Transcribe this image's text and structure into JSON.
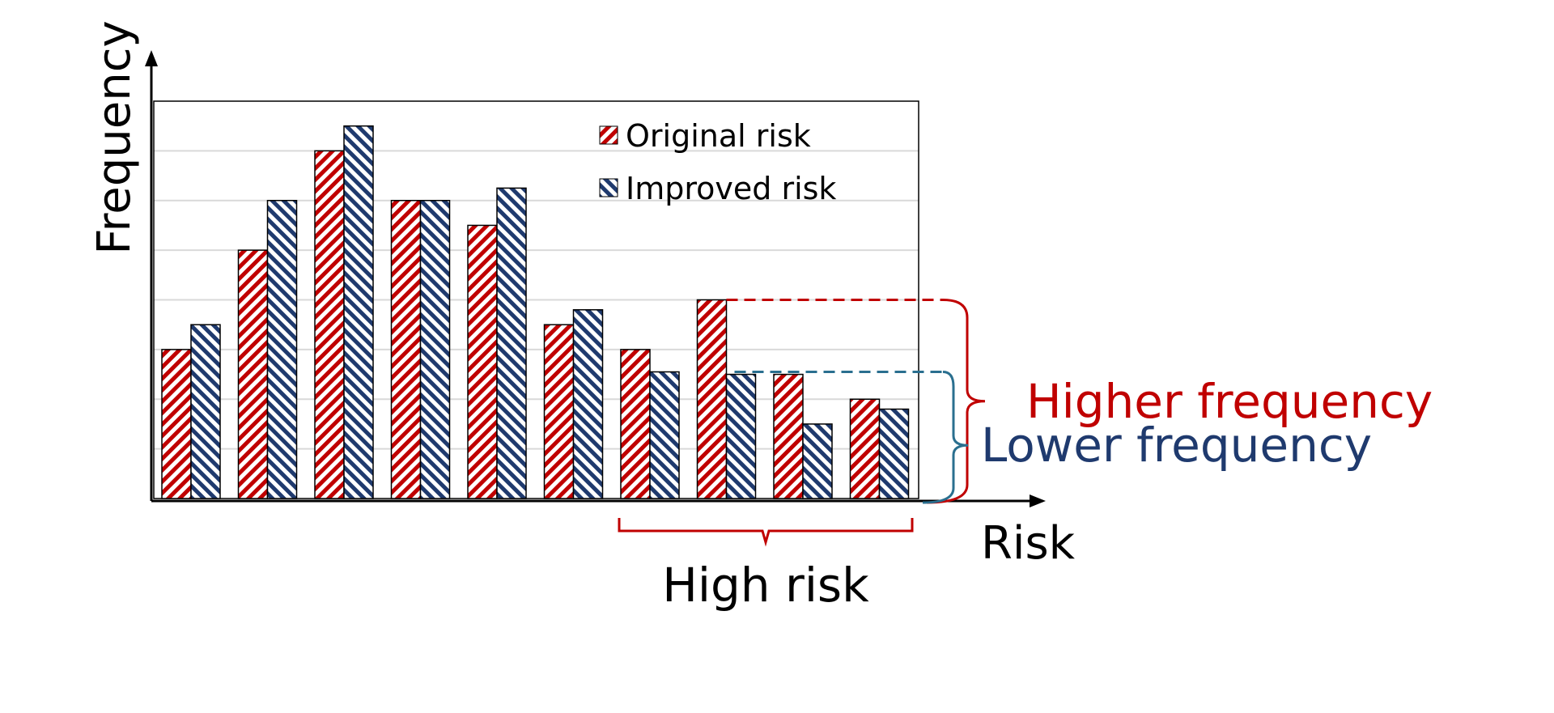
{
  "chart_data": {
    "type": "bar",
    "xlabel": "Risk",
    "ylabel": "Frequency",
    "ylim": [
      0,
      8
    ],
    "grid": true,
    "legend_position": "top-right",
    "categories": [
      "",
      "",
      "",
      "",
      "",
      "",
      "",
      "",
      "",
      ""
    ],
    "series": [
      {
        "name": "Original risk",
        "color": "#c00000",
        "pattern": "diagonal-up",
        "values": [
          3.0,
          5.0,
          7.0,
          6.0,
          5.5,
          3.5,
          3.0,
          4.0,
          2.5,
          2.0
        ]
      },
      {
        "name": "Improved risk",
        "color": "#1f3a6e",
        "pattern": "diagonal-down",
        "values": [
          3.5,
          6.0,
          7.5,
          6.0,
          6.25,
          3.8,
          2.55,
          2.5,
          1.5,
          1.8
        ]
      }
    ],
    "annotations": {
      "higher_frequency": {
        "text": "Higher frequency",
        "color": "#c00000",
        "level": 4.0
      },
      "lower_frequency": {
        "text": "Lower frequency",
        "color": "#1f3a6e",
        "level": 2.55
      },
      "high_risk": {
        "text": "High risk",
        "color": "#c00000",
        "from_category": 6,
        "to_category": 9
      }
    },
    "bracket_colors": {
      "higher": "#c00000",
      "lower": "#2a6f8f"
    }
  }
}
